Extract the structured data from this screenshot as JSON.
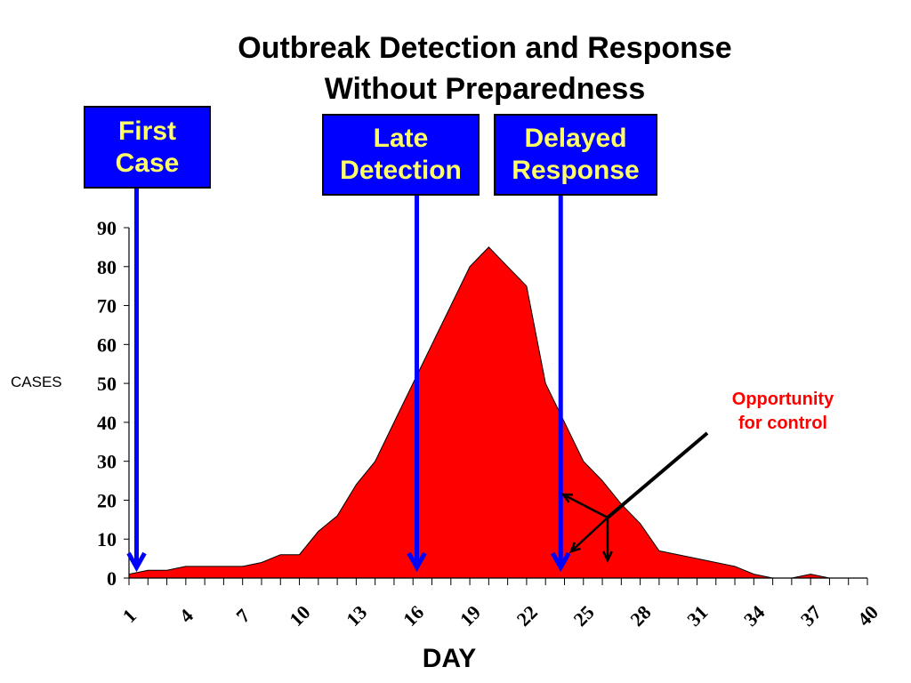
{
  "colors": {
    "title": "#0000ff",
    "area": "#ff0000",
    "box_fill": "#0000ff",
    "box_text": "#ffff66",
    "arrow": "#0000ff",
    "annotation": "#ff0000"
  },
  "chart_data": {
    "type": "area",
    "title": "Outbreak Detection and Response",
    "subtitle": "Without Preparedness",
    "xlabel": "DAY",
    "ylabel": "CASES",
    "ylim": [
      0,
      90
    ],
    "yticks": [
      0,
      10,
      20,
      30,
      40,
      50,
      60,
      70,
      80,
      90
    ],
    "xlim": [
      1,
      40
    ],
    "xtick_labels": [
      "1",
      "4",
      "7",
      "10",
      "13",
      "16",
      "19",
      "22",
      "25",
      "28",
      "31",
      "34",
      "37",
      "40"
    ],
    "grid": false,
    "series": [
      {
        "x": [
          1,
          2,
          3,
          4,
          5,
          6,
          7,
          8,
          9,
          10,
          11,
          12,
          13,
          14,
          15,
          16,
          17,
          18,
          19,
          20,
          21,
          22,
          23,
          24,
          25,
          26,
          27,
          28,
          29,
          30,
          31,
          32,
          33,
          34,
          35,
          36,
          37,
          38,
          39,
          40
        ],
        "values": [
          1,
          2,
          2,
          3,
          3,
          3,
          3,
          4,
          6,
          6,
          12,
          16,
          24,
          30,
          40,
          50,
          60,
          70,
          80,
          85,
          80,
          75,
          50,
          40,
          30,
          25,
          19,
          14,
          7,
          6,
          5,
          4,
          3,
          1,
          0,
          0,
          1,
          0,
          0,
          0
        ]
      }
    ],
    "annotations": [
      {
        "label_lines": [
          "First",
          "Case"
        ],
        "day": 1.4
      },
      {
        "label_lines": [
          "Late",
          "Detection"
        ],
        "day": 16.2
      },
      {
        "label_lines": [
          "Delayed",
          "Response"
        ],
        "day": 23.8
      },
      {
        "label_lines": [
          "Opportunity",
          "for control"
        ]
      }
    ]
  }
}
